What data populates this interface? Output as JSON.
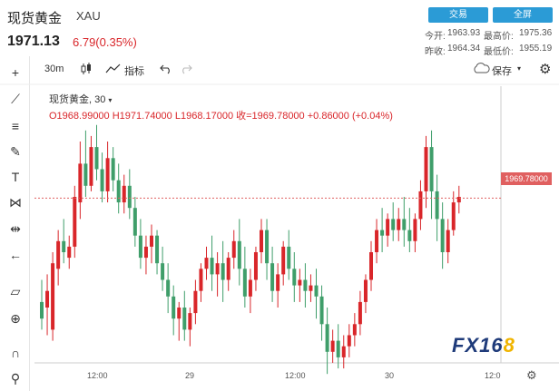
{
  "header": {
    "title": "现货黄金",
    "symbol": "XAU",
    "price": "1971.13",
    "change": "6.79(0.35%)",
    "trade_label": "交易",
    "fullscreen_label": "全屏",
    "open_label": "今开:",
    "open_value": "1963.93",
    "high_label": "最高价:",
    "high_value": "1975.36",
    "prev_close_label": "昨收:",
    "prev_close_value": "1964.34",
    "low_label": "最低价:",
    "low_value": "1955.19"
  },
  "toolbar": {
    "interval": "30m",
    "indicators_label": "指标",
    "save_label": "保存"
  },
  "legend": {
    "name": "现货黄金, 30",
    "ohlc": "O1968.99000  H1971.74000  L1968.17000  收=1969.78000  +0.86000 (+0.04%)"
  },
  "icons": [
    "crosshair-icon",
    "trend-line-icon",
    "fib-icon",
    "brush-icon",
    "text-icon",
    "pattern-icon",
    "measure-icon",
    "back-arrow-icon",
    "ruler-icon",
    "zoom-icon",
    "magnet-icon",
    "lock-icon",
    "trash-icon",
    "candle-type-icon",
    "undo-icon",
    "redo-icon",
    "cloud-icon",
    "settings-icon"
  ],
  "colors": {
    "up": "#d9262a",
    "down": "#3f9e6a",
    "accent": "#2b9bd6"
  },
  "watermark": {
    "text": "FX16",
    "accent": "8"
  },
  "chart_data": {
    "type": "candlestick",
    "title": "现货黄金, 30",
    "current_price_label": "1969.78000",
    "current_price": 1969.78,
    "x_ticks": [
      "12:00",
      "29",
      "12:00",
      "30",
      "12:0"
    ],
    "ylim": [
      1940,
      1990
    ],
    "candles": [
      [
        1951,
        1955,
        1948,
        1946
      ],
      [
        1950,
        1956,
        1953,
        1945
      ],
      [
        1946,
        1960,
        1958,
        1944
      ],
      [
        1957,
        1964,
        1962,
        1954
      ],
      [
        1962,
        1966,
        1960,
        1958
      ],
      [
        1959,
        1963,
        1961,
        1957
      ],
      [
        1961,
        1972,
        1970,
        1959
      ],
      [
        1969,
        1980,
        1976,
        1966
      ],
      [
        1976,
        1982,
        1972,
        1970
      ],
      [
        1972,
        1981,
        1979,
        1971
      ],
      [
        1979,
        1983,
        1975,
        1973
      ],
      [
        1975,
        1978,
        1971,
        1969
      ],
      [
        1971,
        1980,
        1977,
        1969
      ],
      [
        1977,
        1979,
        1973,
        1971
      ],
      [
        1973,
        1976,
        1969,
        1967
      ],
      [
        1969,
        1974,
        1972,
        1967
      ],
      [
        1972,
        1975,
        1968,
        1966
      ],
      [
        1968,
        1970,
        1963,
        1961
      ],
      [
        1963,
        1966,
        1959,
        1957
      ],
      [
        1959,
        1963,
        1961,
        1956
      ],
      [
        1961,
        1965,
        1963,
        1958
      ],
      [
        1963,
        1964,
        1958,
        1956
      ],
      [
        1958,
        1961,
        1955,
        1953
      ],
      [
        1955,
        1958,
        1952,
        1949
      ],
      [
        1952,
        1954,
        1948,
        1945
      ],
      [
        1948,
        1951,
        1950,
        1944
      ],
      [
        1950,
        1953,
        1946,
        1944
      ],
      [
        1946,
        1950,
        1949,
        1943
      ],
      [
        1949,
        1955,
        1953,
        1947
      ],
      [
        1953,
        1958,
        1957,
        1951
      ],
      [
        1957,
        1961,
        1959,
        1955
      ],
      [
        1959,
        1963,
        1956,
        1953
      ],
      [
        1956,
        1960,
        1958,
        1952
      ],
      [
        1958,
        1962,
        1955,
        1951
      ],
      [
        1955,
        1960,
        1959,
        1953
      ],
      [
        1959,
        1964,
        1962,
        1957
      ],
      [
        1962,
        1966,
        1957,
        1954
      ],
      [
        1957,
        1961,
        1952,
        1950
      ],
      [
        1952,
        1957,
        1955,
        1949
      ],
      [
        1955,
        1961,
        1960,
        1953
      ],
      [
        1960,
        1966,
        1964,
        1958
      ],
      [
        1964,
        1966,
        1958,
        1955
      ],
      [
        1958,
        1961,
        1953,
        1951
      ],
      [
        1953,
        1958,
        1956,
        1950
      ],
      [
        1956,
        1962,
        1961,
        1954
      ],
      [
        1961,
        1964,
        1957,
        1955
      ],
      [
        1957,
        1960,
        1954,
        1951
      ],
      [
        1954,
        1957,
        1955,
        1951
      ],
      [
        1955,
        1958,
        1953,
        1950
      ],
      [
        1953,
        1956,
        1954,
        1951
      ],
      [
        1954,
        1957,
        1952,
        1948
      ],
      [
        1952,
        1954,
        1947,
        1944
      ],
      [
        1947,
        1950,
        1942,
        1938
      ],
      [
        1942,
        1946,
        1944,
        1940
      ],
      [
        1944,
        1947,
        1941,
        1939
      ],
      [
        1941,
        1945,
        1943,
        1939
      ],
      [
        1943,
        1947,
        1945,
        1941
      ],
      [
        1945,
        1949,
        1947,
        1943
      ],
      [
        1947,
        1953,
        1951,
        1945
      ],
      [
        1951,
        1956,
        1955,
        1949
      ],
      [
        1955,
        1962,
        1960,
        1953
      ],
      [
        1960,
        1966,
        1964,
        1958
      ],
      [
        1964,
        1968,
        1963,
        1960
      ],
      [
        1963,
        1967,
        1966,
        1961
      ],
      [
        1966,
        1969,
        1964,
        1962
      ],
      [
        1964,
        1968,
        1966,
        1962
      ],
      [
        1966,
        1970,
        1964,
        1961
      ],
      [
        1964,
        1968,
        1962,
        1960
      ],
      [
        1962,
        1967,
        1966,
        1960
      ],
      [
        1966,
        1973,
        1971,
        1964
      ],
      [
        1971,
        1981,
        1979,
        1968
      ],
      [
        1979,
        1982,
        1971,
        1966
      ],
      [
        1971,
        1974,
        1966,
        1962
      ],
      [
        1966,
        1969,
        1960,
        1957
      ],
      [
        1960,
        1966,
        1964,
        1958
      ],
      [
        1964,
        1971,
        1969,
        1963
      ],
      [
        1969,
        1972,
        1970,
        1967
      ]
    ]
  }
}
